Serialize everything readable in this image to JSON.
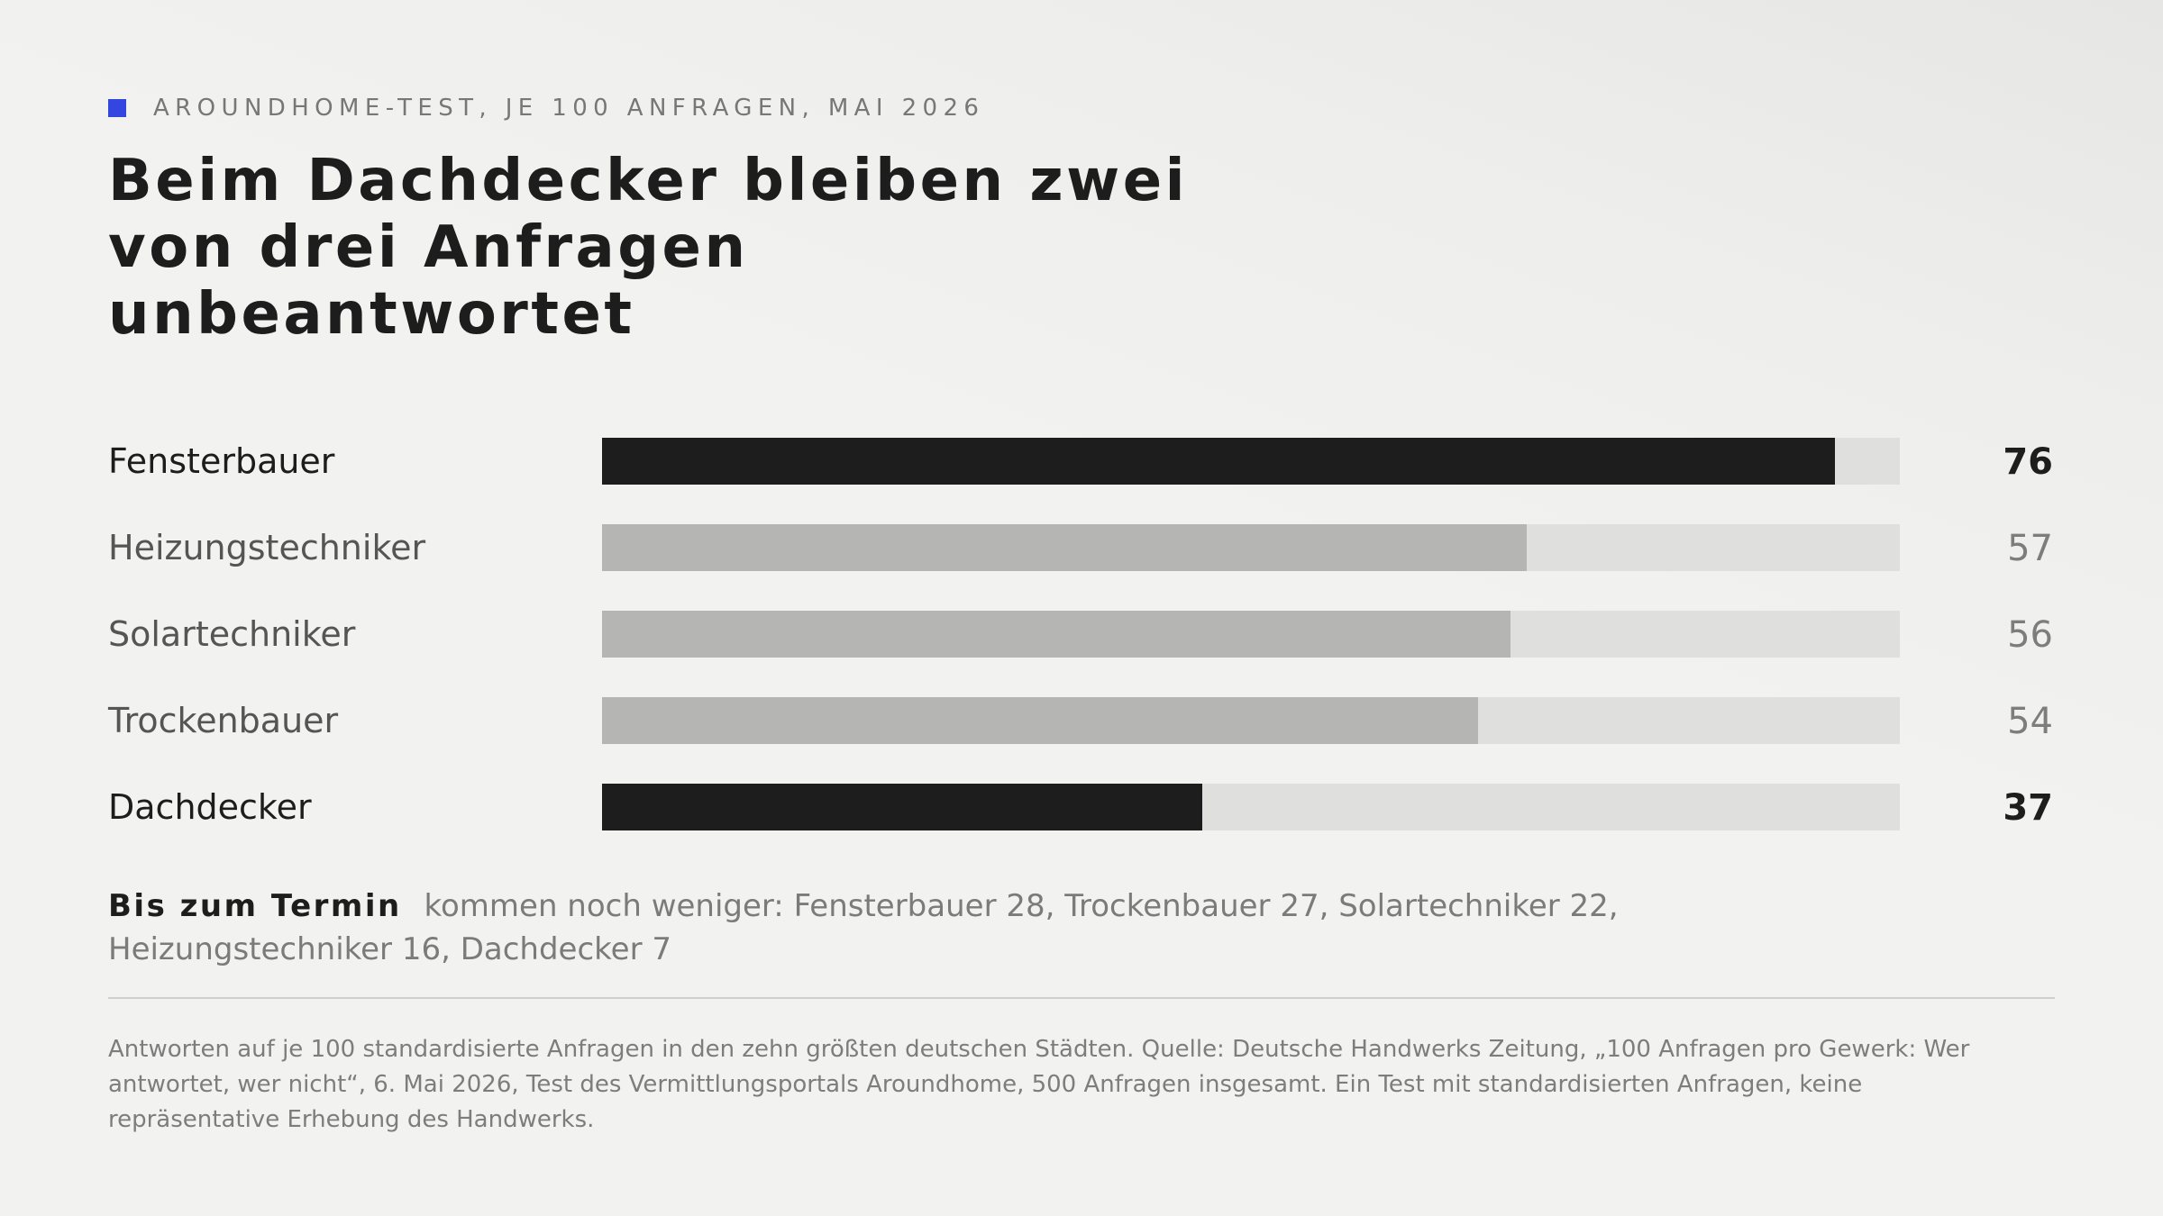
{
  "kicker": "AROUNDHOME-TEST, JE 100 ANFRAGEN, MAI 2026",
  "accent_color": "#3446e0",
  "title": "Beim Dachdecker bleiben zwei von drei Anfragen unbeantwortet",
  "chart_data": {
    "type": "bar",
    "orientation": "horizontal",
    "categories": [
      "Fensterbauer",
      "Heizungstechniker",
      "Solartechniker",
      "Trockenbauer",
      "Dachdecker"
    ],
    "values": [
      76,
      57,
      56,
      54,
      37
    ],
    "value_labels": [
      "76",
      "57",
      "56",
      "54",
      "37"
    ],
    "highlighted": [
      true,
      false,
      false,
      false,
      true
    ],
    "xlim": [
      0,
      80
    ],
    "grid": false,
    "legend": "none",
    "colors": {
      "highlight": "#1d1d1d",
      "muted": "#b5b5b3",
      "track": "#dfdfdd",
      "label_highlight": "#1d1d1d",
      "label_muted": "#555553",
      "value_muted": "#7d7d7b"
    }
  },
  "note": {
    "lead": "Bis zum Termin",
    "text": "kommen noch weniger: Fensterbauer 28, Trockenbauer 27, Solartechniker 22, Heizungstechniker 16, Dachdecker 7"
  },
  "footnote": "Antworten auf je 100 standardisierte Anfragen in den zehn größten deutschen Städten. Quelle: Deutsche Handwerks Zeitung, „100 Anfragen pro Gewerk: Wer antwortet, wer nicht“, 6. Mai 2026, Test des Vermittlungsportals Aroundhome, 500 Anfragen insgesamt. Ein Test mit standardisierten Anfragen, keine repräsentative Erhebung des Handwerks."
}
